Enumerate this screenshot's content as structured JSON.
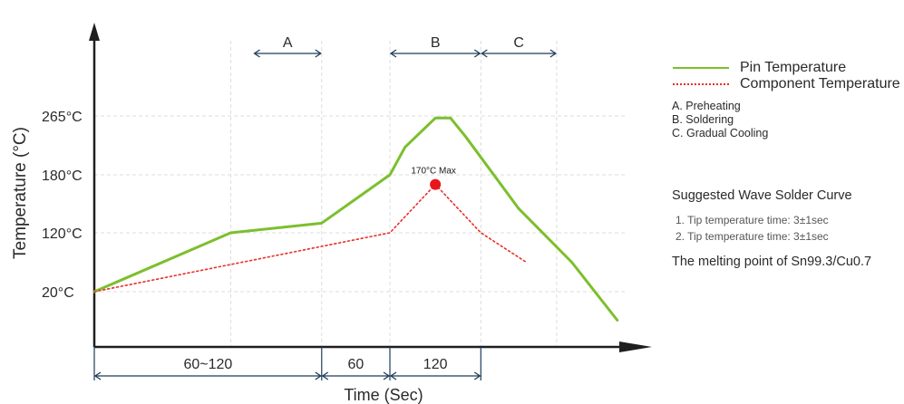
{
  "chart_data": {
    "type": "line",
    "xlabel": "Time (Sec)",
    "ylabel": "Temperature (°C)",
    "ytick_labels": [
      "20°C",
      "120°C",
      "180°C",
      "265°C"
    ],
    "grid": true,
    "series": [
      {
        "name": "Pin Temperature",
        "color": "#7cbf2d",
        "style": "solid",
        "x": [
          0,
          90,
          150,
          195,
          205,
          225,
          235,
          245,
          280,
          315,
          345
        ],
        "y": [
          20,
          120,
          130,
          180,
          220,
          262,
          262,
          235,
          145,
          70,
          10
        ]
      },
      {
        "name": "Component Temperature",
        "color": "#e8302a",
        "style": "dotted",
        "x": [
          0,
          195,
          225,
          255,
          285
        ],
        "y": [
          20,
          120,
          170,
          120,
          70
        ]
      }
    ],
    "phases": [
      {
        "label": "A",
        "x_start": 105,
        "x_end": 150
      },
      {
        "label": "B",
        "x_start": 195,
        "x_end": 255
      },
      {
        "label": "C",
        "x_start": 255,
        "x_end": 305
      }
    ],
    "durations": [
      {
        "label": "60~120",
        "x_start": 0,
        "x_end": 150
      },
      {
        "label": "60",
        "x_start": 150,
        "x_end": 195
      },
      {
        "label": "120",
        "x_start": 195,
        "x_end": 255
      }
    ],
    "annotation": {
      "text": "170°C Max",
      "x": 225,
      "y": 170,
      "color": "#e8161b"
    }
  },
  "legend": {
    "items": [
      {
        "label": "Pin Temperature",
        "color": "#7cbf2d",
        "style": "solid"
      },
      {
        "label": "Component Temperature",
        "color": "#e8302a",
        "style": "dotted"
      }
    ]
  },
  "phase_notes": [
    "A. Preheating",
    "B. Soldering",
    "C. Gradual Cooling"
  ],
  "suggested": {
    "title": "Suggested Wave Solder Curve",
    "notes": [
      "1. Tip temperature time: 3±1sec",
      "2. Tip temperature time: 3±1sec"
    ]
  },
  "melting_point": "The melting point of Sn99.3/Cu0.7"
}
